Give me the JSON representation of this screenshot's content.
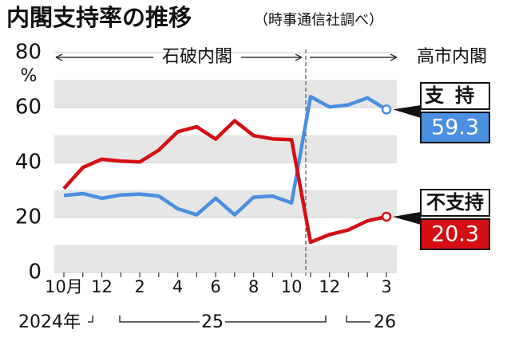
{
  "chart_data": {
    "type": "line",
    "title": "内閣支持率の推移",
    "subtitle": "（時事通信社調べ）",
    "y_unit": "%",
    "categories": [
      "10月",
      null,
      "12",
      null,
      "2",
      null,
      "4",
      null,
      "6",
      null,
      "8",
      null,
      "10",
      null,
      "12",
      null,
      null,
      "3"
    ],
    "year_labels": [
      "2024年",
      "25",
      "26"
    ],
    "eras": [
      "石破内閣",
      "高市内閣"
    ],
    "series": [
      {
        "name": "支持",
        "color": "#4a8fe0",
        "values": [
          28.0,
          28.7,
          27.0,
          28.2,
          28.5,
          27.8,
          23.2,
          21.0,
          27.0,
          21.0,
          27.4,
          27.8,
          25.3,
          64.0,
          60.2,
          61.0,
          63.5,
          59.3
        ]
      },
      {
        "name": "不支持",
        "color": "#d40f14",
        "values": [
          30.5,
          38.2,
          41.2,
          40.5,
          40.2,
          44.5,
          51.2,
          53.0,
          48.5,
          55.2,
          49.8,
          48.6,
          48.3,
          11.0,
          13.8,
          15.5,
          18.8,
          20.3
        ]
      }
    ],
    "ylim": [
      0,
      80
    ],
    "yticks": [
      0,
      20,
      40,
      60,
      80
    ],
    "grid": true
  }
}
